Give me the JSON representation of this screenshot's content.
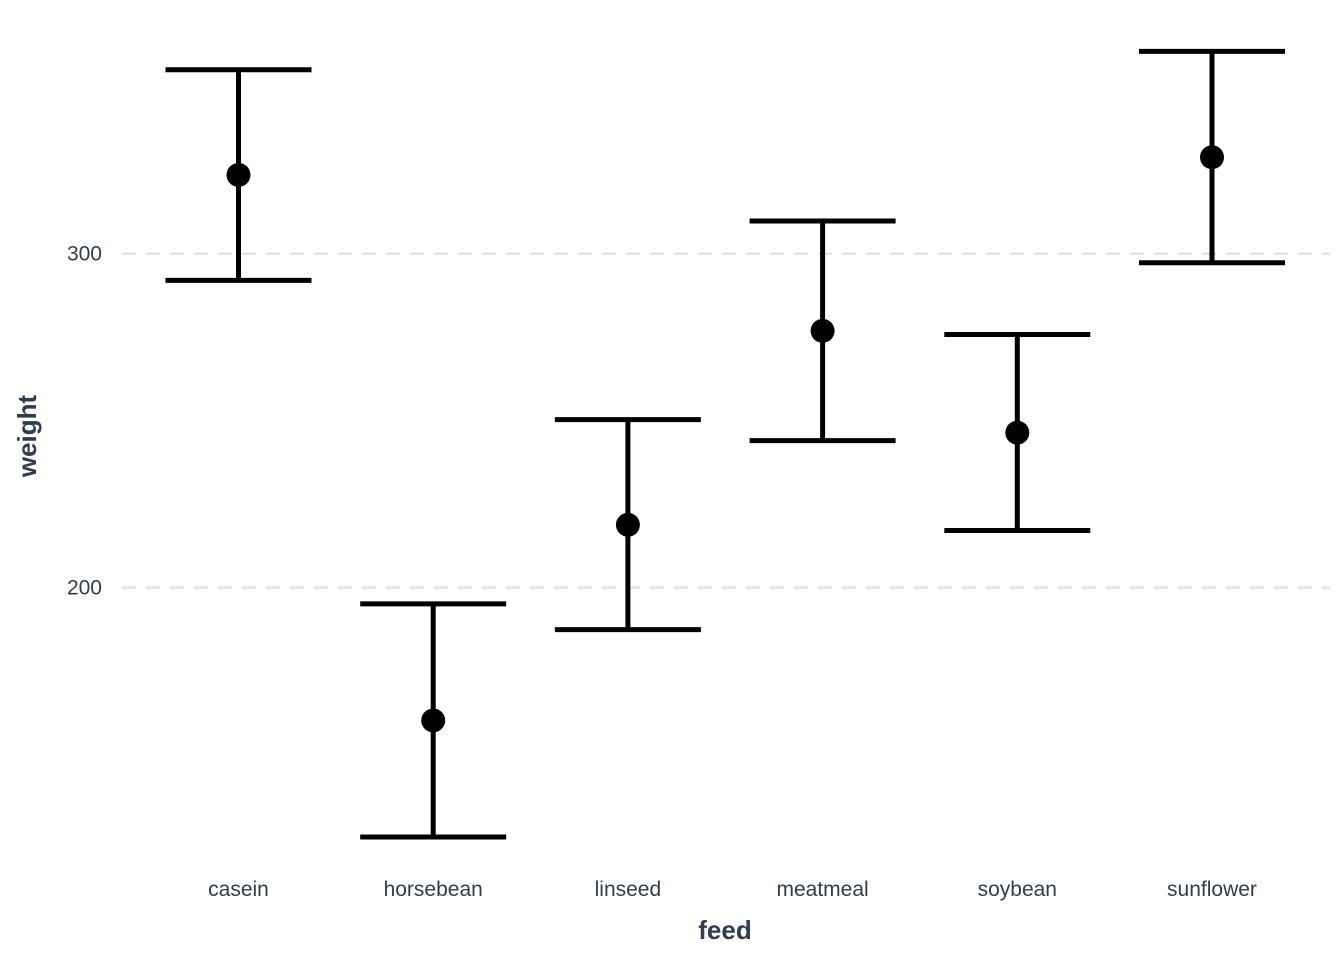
{
  "chart_data": {
    "type": "errorbar",
    "title": "",
    "xlabel": "feed",
    "ylabel": "weight",
    "ylim": [
      119,
      370
    ],
    "yticks": [
      200,
      300
    ],
    "grid": "horizontal major, dashed",
    "legend": "none",
    "colors": {
      "marks": "#000000",
      "grid": "#e3e3e3",
      "text": "#2f3e4e"
    },
    "categories": [
      "casein",
      "horsebean",
      "linseed",
      "meatmeal",
      "soybean",
      "sunflower"
    ],
    "mean": [
      323.6,
      160.2,
      218.8,
      276.9,
      246.4,
      328.9
    ],
    "lower": [
      292.0,
      125.3,
      187.4,
      244.0,
      217.1,
      297.3
    ],
    "upper": [
      355.1,
      195.1,
      250.3,
      309.8,
      275.8,
      360.6
    ]
  }
}
